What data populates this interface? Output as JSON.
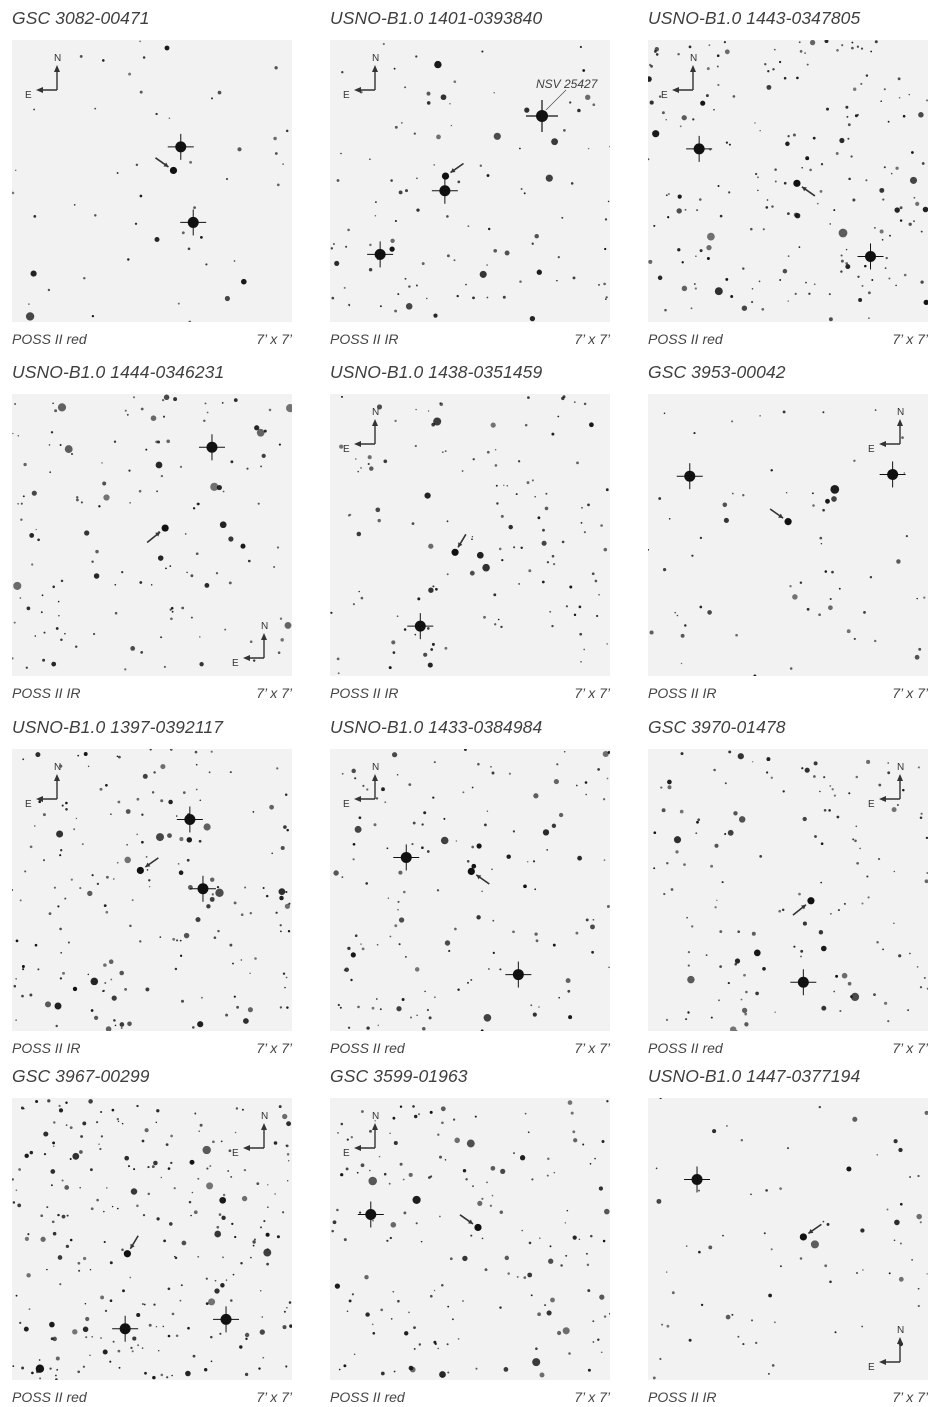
{
  "figure": {
    "panels": [
      {
        "title": "GSC 3082-00471",
        "survey": "POSS II red",
        "fov": "7’ x 7’",
        "compass_corner": "top-left",
        "density": 0.35,
        "label": ""
      },
      {
        "title": "USNO-B1.0 1401-0393840",
        "survey": "POSS II  IR",
        "fov": "7’ x 7’",
        "compass_corner": "top-left",
        "density": 0.75,
        "label": "NSV 25427"
      },
      {
        "title": "USNO-B1.0 1443-0347805",
        "survey": "POSS II red",
        "fov": "7’ x 7’",
        "compass_corner": "top-left",
        "density": 1.4,
        "label": ""
      },
      {
        "title": "USNO-B1.0 1444-0346231",
        "survey": "POSS II  IR",
        "fov": "7’ x 7’",
        "compass_corner": "bottom-right",
        "density": 1.0,
        "label": ""
      },
      {
        "title": "USNO-B1.0 1438-0351459",
        "survey": "POSS II  IR",
        "fov": "7’ x 7’",
        "compass_corner": "top-left",
        "density": 0.9,
        "label": ""
      },
      {
        "title": "GSC 3953-00042",
        "survey": "POSS II  IR",
        "fov": "7’ x 7’",
        "compass_corner": "top-right",
        "density": 0.45,
        "label": ""
      },
      {
        "title": "USNO-B1.0 1397-0392117",
        "survey": "POSS II  IR",
        "fov": "7’ x 7’",
        "compass_corner": "top-left",
        "density": 1.3,
        "label": ""
      },
      {
        "title": "USNO-B1.0 1433-0384984",
        "survey": "POSS II red",
        "fov": "7’ x 7’",
        "compass_corner": "top-left",
        "density": 1.0,
        "label": ""
      },
      {
        "title": "GSC 3970-01478",
        "survey": "POSS II red",
        "fov": "7’ x 7’",
        "compass_corner": "top-right",
        "density": 1.0,
        "label": ""
      },
      {
        "title": "GSC 3967-00299",
        "survey": "POSS II red",
        "fov": "7’ x 7’",
        "compass_corner": "top-right",
        "density": 1.8,
        "label": ""
      },
      {
        "title": "GSC 3599-01963",
        "survey": "POSS II red",
        "fov": "7’ x 7’",
        "compass_corner": "top-left",
        "density": 1.2,
        "label": ""
      },
      {
        "title": "USNO-B1.0 1447-0377194",
        "survey": "POSS II  IR",
        "fov": "7’ x 7’",
        "compass_corner": "bottom-right",
        "density": 0.5,
        "label": ""
      }
    ],
    "compass": {
      "north": "N",
      "east": "E"
    },
    "colors": {
      "sky": "#f2f2f2",
      "star": "#111111",
      "arrow": "#333333",
      "text": "#3f3f3f"
    }
  }
}
